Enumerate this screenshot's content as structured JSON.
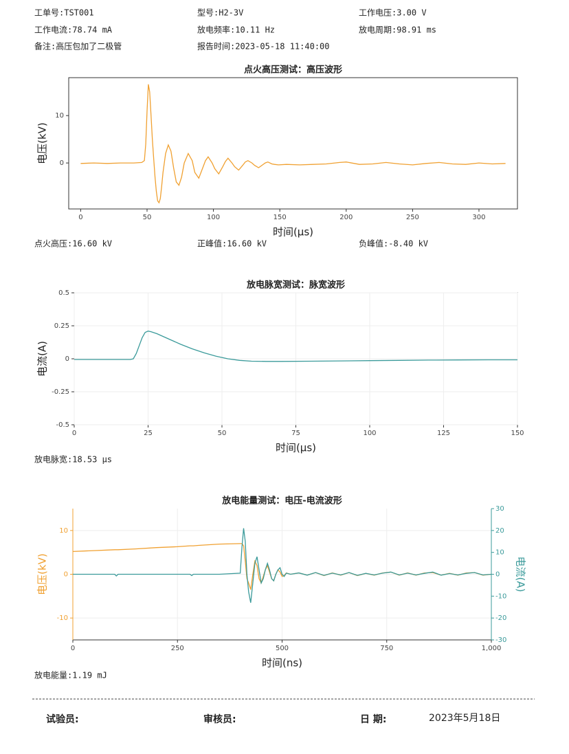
{
  "header": {
    "fields": [
      "工单号:TST001",
      "型号:H2-3V",
      "工作电压:3.00 V",
      "工作电流:78.74 mA",
      "放电频率:10.11 Hz",
      "放电周期:98.91 ms",
      "备注:高压包加了二极管",
      "报告时间:2023-05-18 11:40:00"
    ]
  },
  "measurements": {
    "ignition": [
      "点火高压:16.60 kV",
      "正峰值:16.60 kV",
      "负峰值:-8.40 kV"
    ],
    "pulse_width": "放电脉宽:18.53 μs",
    "energy": "放电能量:1.19 mJ"
  },
  "chart_data": [
    {
      "type": "line",
      "title": "点火高压测试：高压波形",
      "xlabel": "时间(μs)",
      "ylabel": "电压(kV)",
      "grid": false,
      "xlim": [
        -9,
        329
      ],
      "xticks": [
        0,
        50,
        100,
        150,
        200,
        250,
        300
      ],
      "ylim": [
        -9.7,
        18
      ],
      "yticks": [
        0,
        10
      ],
      "x": [
        0,
        10,
        20,
        30,
        40,
        46,
        48,
        49,
        50,
        51,
        52,
        53,
        54,
        55,
        56,
        57,
        58,
        59,
        60,
        61,
        62,
        64,
        66,
        68,
        70,
        72,
        74,
        76,
        78,
        81,
        84,
        86,
        89,
        92,
        94,
        96,
        99,
        101,
        104,
        107,
        109,
        111,
        114,
        116,
        119,
        122,
        124,
        126,
        129,
        131,
        134,
        137,
        139,
        141,
        144,
        146,
        149,
        155,
        165,
        175,
        185,
        195,
        200,
        210,
        220,
        230,
        240,
        250,
        260,
        270,
        280,
        290,
        300,
        310,
        320
      ],
      "series": [
        {
          "color": "#f0a030",
          "values": [
            -0.1,
            0,
            -0.1,
            0,
            0,
            0.1,
            0.5,
            4,
            11,
            16.6,
            15,
            10,
            5,
            1,
            -3,
            -6,
            -8,
            -8.4,
            -7.5,
            -5,
            -2,
            2,
            3.8,
            2.5,
            -1,
            -4,
            -4.7,
            -3,
            0,
            2,
            0.5,
            -2,
            -3.2,
            -1,
            0.5,
            1.3,
            0,
            -1.2,
            -2.3,
            -0.8,
            0.3,
            1,
            0,
            -0.8,
            -1.5,
            -0.5,
            0.2,
            0.5,
            0,
            -0.5,
            -1,
            -0.4,
            0,
            0.2,
            -0.2,
            -0.3,
            -0.4,
            -0.3,
            -0.4,
            -0.3,
            -0.2,
            0.1,
            0.2,
            -0.3,
            -0.2,
            0.1,
            -0.2,
            -0.4,
            -0.1,
            0.1,
            -0.2,
            -0.3,
            0,
            -0.2,
            -0.1
          ]
        }
      ]
    },
    {
      "type": "line",
      "title": "放电脉宽测试：脉宽波形",
      "xlabel": "时间(μs)",
      "ylabel": "电流(A)",
      "grid": true,
      "xlim": [
        0,
        150
      ],
      "xticks": [
        0,
        25,
        50,
        75,
        100,
        125,
        150
      ],
      "ylim": [
        -0.5,
        0.5
      ],
      "yticks": [
        -0.5,
        -0.25,
        0,
        0.25,
        0.5
      ],
      "x": [
        0,
        5,
        10,
        15,
        19,
        20,
        21,
        22,
        23,
        24,
        25,
        26,
        28,
        30,
        33,
        36,
        40,
        44,
        48,
        52,
        56,
        60,
        65,
        70,
        80,
        90,
        100,
        110,
        120,
        130,
        140,
        150
      ],
      "series": [
        {
          "color": "#3a9a9a",
          "values": [
            -0.005,
            -0.005,
            -0.005,
            -0.005,
            -0.005,
            0.0,
            0.04,
            0.1,
            0.16,
            0.2,
            0.21,
            0.205,
            0.19,
            0.17,
            0.14,
            0.11,
            0.075,
            0.045,
            0.02,
            0.0,
            -0.012,
            -0.018,
            -0.02,
            -0.02,
            -0.018,
            -0.016,
            -0.014,
            -0.012,
            -0.01,
            -0.009,
            -0.008,
            -0.008
          ]
        }
      ]
    },
    {
      "type": "line",
      "title": "放电能量测试：电压-电流波形",
      "xlabel": "时间(ns)",
      "ylabel": "电压(kV)",
      "y2label": "电流(A)",
      "grid": true,
      "xlim": [
        0,
        1000
      ],
      "xticks": [
        0,
        250,
        500,
        750,
        {
          "value": 1000,
          "label": "1,000"
        }
      ],
      "ylim": [
        -15,
        15
      ],
      "yticks": [
        -10,
        0,
        10
      ],
      "y2lim": [
        -30,
        30
      ],
      "y2ticks": [
        -30,
        -20,
        -10,
        0,
        10,
        20,
        30
      ],
      "x": [
        0,
        50,
        100,
        104,
        108,
        150,
        200,
        250,
        280,
        284,
        288,
        300,
        350,
        400,
        404,
        408,
        412,
        416,
        420,
        425,
        430,
        435,
        440,
        445,
        450,
        455,
        460,
        465,
        470,
        475,
        480,
        485,
        490,
        495,
        500,
        505,
        510,
        520,
        540,
        560,
        580,
        600,
        620,
        640,
        660,
        680,
        700,
        720,
        740,
        760,
        780,
        800,
        820,
        840,
        860,
        880,
        900,
        920,
        940,
        960,
        980,
        1000
      ],
      "series": [
        {
          "color": "#f0a030",
          "values": [
            5.2,
            5.4,
            5.6,
            5.6,
            5.6,
            5.8,
            6.1,
            6.3,
            6.5,
            6.5,
            6.5,
            6.6,
            6.9,
            7.0,
            7.0,
            6.5,
            3,
            -1,
            -2,
            -3.5,
            0,
            3,
            2,
            -1,
            -2,
            -0.5,
            1,
            2,
            0.5,
            -1,
            -1.5,
            0,
            1,
            0.5,
            -0.5,
            -0.3,
            0.3,
            0,
            0.3,
            -0.2,
            0.4,
            -0.3,
            0.3,
            -0.2,
            0.4,
            -0.3,
            0.2,
            -0.2,
            0.3,
            0.5,
            -0.2,
            0.3,
            -0.2,
            0.3,
            0.4,
            -0.2,
            0.2,
            -0.2,
            0.3,
            0.4,
            -0.2,
            0
          ]
        },
        {
          "color": "#3a9a9a",
          "axis": "y2",
          "values": [
            0,
            0,
            0,
            -0.8,
            0,
            0,
            0,
            0,
            0,
            -0.6,
            0,
            0,
            0,
            0.5,
            12,
            21,
            15,
            0,
            -8,
            -13,
            -4,
            5,
            8,
            2,
            -4,
            -2,
            2,
            5,
            2,
            -2,
            -3,
            0,
            2,
            3,
            0,
            -1,
            0.5,
            0,
            0.6,
            -0.4,
            0.8,
            -0.5,
            0.5,
            -0.3,
            0.8,
            -0.5,
            0.4,
            -0.3,
            0.5,
            1,
            -0.3,
            0.5,
            -0.3,
            0.4,
            1,
            -0.4,
            0.3,
            -0.3,
            0.4,
            0.8,
            -0.3,
            0
          ]
        }
      ]
    }
  ],
  "footer": {
    "signatures": [
      "试验员:",
      "审核员:",
      "日 期:"
    ],
    "date": "2023年5月18日"
  }
}
